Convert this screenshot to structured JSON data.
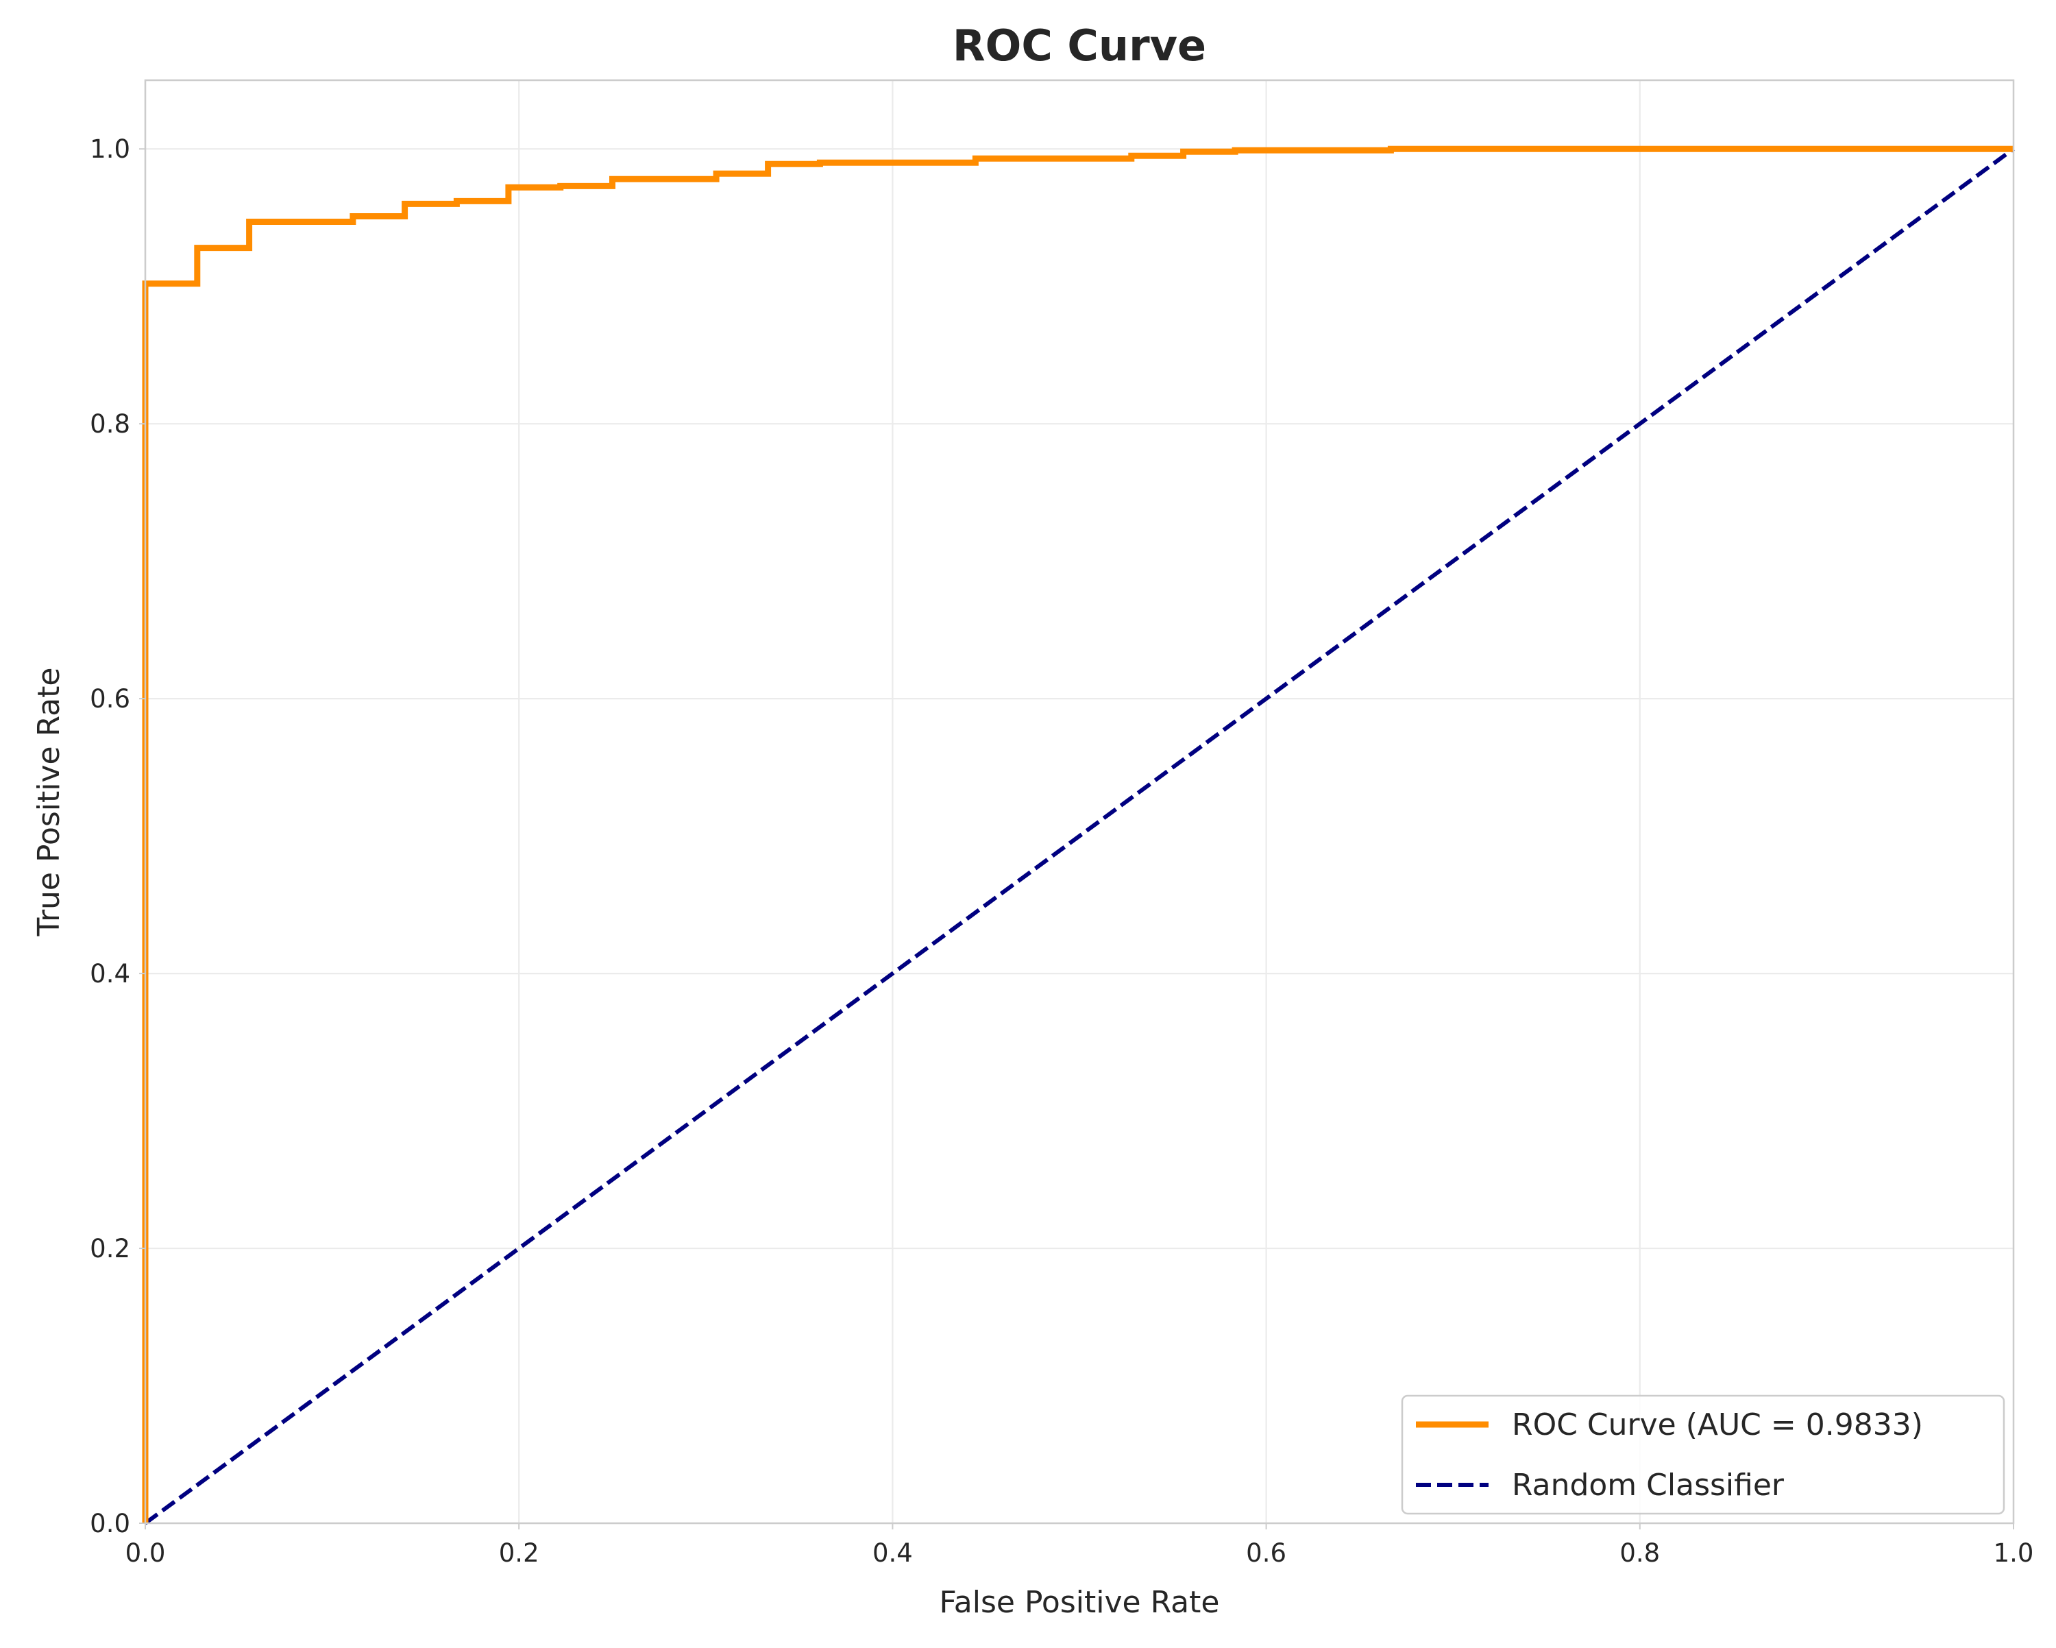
{
  "chart_data": {
    "type": "line",
    "title": "ROC Curve",
    "xlabel": "False Positive Rate",
    "ylabel": "True Positive Rate",
    "xlim": [
      0.0,
      1.0
    ],
    "ylim": [
      0.0,
      1.05
    ],
    "xticks": [
      "0.0",
      "0.2",
      "0.4",
      "0.6",
      "0.8",
      "1.0"
    ],
    "yticks": [
      "0.0",
      "0.2",
      "0.4",
      "0.6",
      "0.8",
      "1.0"
    ],
    "grid": true,
    "legend_position": "lower-right",
    "series": [
      {
        "name": "ROC Curve (AUC = 0.9833)",
        "color": "#ff8c00",
        "style": "solid",
        "x": [
          0.0,
          0.0,
          0.0278,
          0.0278,
          0.0556,
          0.0556,
          0.1111,
          0.1111,
          0.1389,
          0.1389,
          0.1667,
          0.1667,
          0.1944,
          0.1944,
          0.2222,
          0.2222,
          0.25,
          0.25,
          0.3056,
          0.3056,
          0.3333,
          0.3333,
          0.3611,
          0.3611,
          0.4444,
          0.4444,
          0.5278,
          0.5278,
          0.5556,
          0.5556,
          0.5833,
          0.5833,
          0.6667,
          0.6667,
          1.0
        ],
        "y": [
          0.0,
          0.902,
          0.902,
          0.928,
          0.928,
          0.947,
          0.947,
          0.951,
          0.951,
          0.96,
          0.96,
          0.962,
          0.962,
          0.972,
          0.972,
          0.973,
          0.973,
          0.978,
          0.978,
          0.982,
          0.982,
          0.989,
          0.989,
          0.99,
          0.99,
          0.993,
          0.993,
          0.995,
          0.995,
          0.998,
          0.998,
          0.999,
          0.999,
          1.0,
          1.0
        ]
      },
      {
        "name": "Random Classifier",
        "color": "#000080",
        "style": "dashed",
        "x": [
          0.0,
          1.0
        ],
        "y": [
          0.0,
          1.0
        ]
      }
    ]
  }
}
